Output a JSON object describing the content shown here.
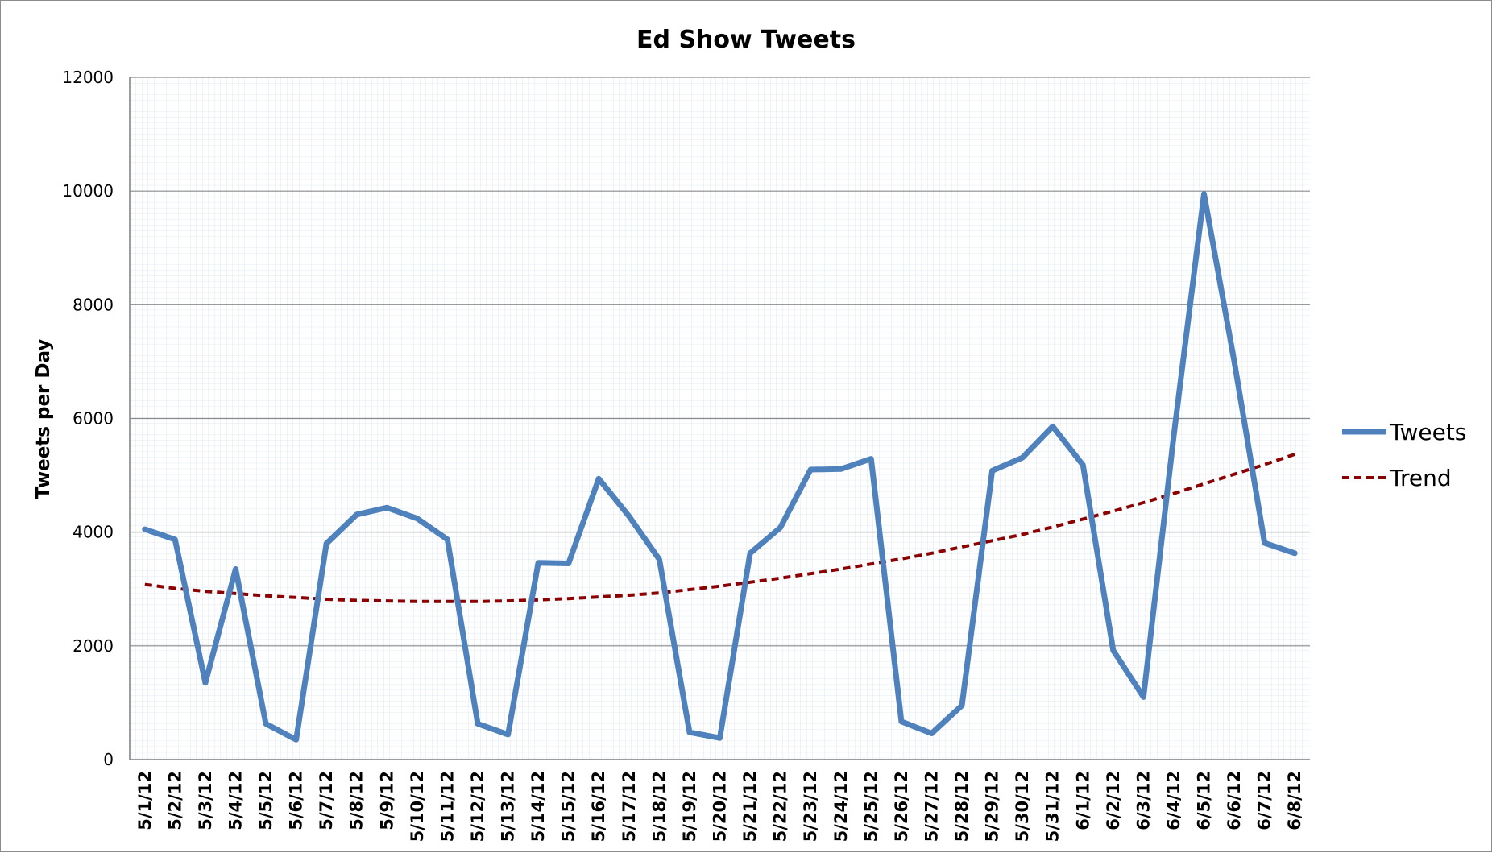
{
  "chart_data": {
    "type": "line",
    "title": "Ed Show Tweets",
    "xlabel": "",
    "ylabel": "Tweets per Day",
    "ylim": [
      0,
      12000
    ],
    "yticks": [
      0,
      2000,
      4000,
      6000,
      8000,
      10000,
      12000
    ],
    "grid": true,
    "legend_position": "right",
    "categories": [
      "5/1/12",
      "5/2/12",
      "5/3/12",
      "5/4/12",
      "5/5/12",
      "5/6/12",
      "5/7/12",
      "5/8/12",
      "5/9/12",
      "5/10/12",
      "5/11/12",
      "5/12/12",
      "5/13/12",
      "5/14/12",
      "5/15/12",
      "5/16/12",
      "5/17/12",
      "5/18/12",
      "5/19/12",
      "5/20/12",
      "5/21/12",
      "5/22/12",
      "5/23/12",
      "5/24/12",
      "5/25/12",
      "5/26/12",
      "5/27/12",
      "5/28/12",
      "5/29/12",
      "5/30/12",
      "5/31/12",
      "6/1/12",
      "6/2/12",
      "6/3/12",
      "6/4/12",
      "6/5/12",
      "6/6/12",
      "6/7/12",
      "6/8/12"
    ],
    "series": [
      {
        "name": "Tweets",
        "color": "#4f81bd",
        "style": "solid",
        "values": [
          4050,
          3870,
          1350,
          3350,
          630,
          350,
          3800,
          4310,
          4430,
          4240,
          3870,
          630,
          440,
          3460,
          3450,
          4940,
          4280,
          3520,
          480,
          380,
          3630,
          4080,
          5100,
          5110,
          5290,
          670,
          460,
          950,
          5080,
          5310,
          5860,
          5180,
          1920,
          1100,
          5700,
          9950,
          7000,
          3810,
          3630
        ]
      },
      {
        "name": "Trend",
        "color": "#8b0000",
        "style": "dashed",
        "values": [
          3080,
          3010,
          2960,
          2920,
          2880,
          2850,
          2820,
          2800,
          2790,
          2780,
          2780,
          2780,
          2790,
          2810,
          2830,
          2860,
          2890,
          2930,
          2990,
          3050,
          3120,
          3190,
          3270,
          3350,
          3440,
          3530,
          3630,
          3740,
          3850,
          3960,
          4090,
          4230,
          4370,
          4520,
          4680,
          4850,
          5020,
          5190,
          5370
        ]
      }
    ]
  }
}
